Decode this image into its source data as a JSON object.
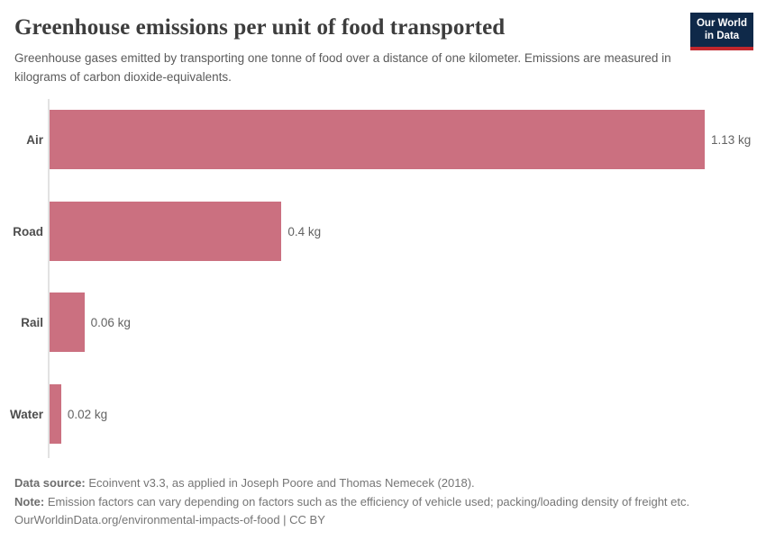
{
  "header": {
    "title": "Greenhouse emissions per unit of food transported",
    "subtitle": "Greenhouse gases emitted by transporting one tonne of food over a distance of one kilometer. Emissions are measured in kilograms of carbon dioxide-equivalents."
  },
  "logo": {
    "line1": "Our World",
    "line2": "in Data",
    "bg_color": "#0f2949",
    "accent_color": "#c1272d"
  },
  "chart_data": {
    "type": "bar",
    "orientation": "horizontal",
    "title": "Greenhouse emissions per unit of food transported",
    "categories": [
      "Air",
      "Road",
      "Rail",
      "Water"
    ],
    "values": [
      1.13,
      0.4,
      0.06,
      0.02
    ],
    "value_labels": [
      "1.13 kg",
      "0.4 kg",
      "0.06 kg",
      "0.02 kg"
    ],
    "unit": "kg",
    "xlim": [
      0,
      1.13
    ],
    "grid": false,
    "bar_color": "#cb7080",
    "axis_line_color": "#e2e2e2"
  },
  "footer": {
    "data_source_label": "Data source:",
    "data_source_text": "Ecoinvent v3.3, as applied in Joseph Poore and Thomas Nemecek (2018).",
    "note_label": "Note:",
    "note_text": "Emission factors can vary depending on factors such as the efficiency of vehicle used; packing/loading density of freight etc.",
    "link": "OurWorldinData.org/environmental-impacts-of-food | CC BY"
  }
}
